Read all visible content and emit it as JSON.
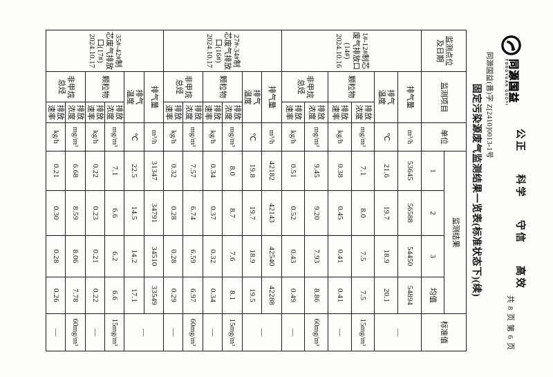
{
  "header": {
    "logo": {
      "brand": "同源国益",
      "brand_latin": "TONGYUAN GUOYI"
    },
    "cert_no": "同源国益(晋)字 Z[2410]0013-1号",
    "motto": [
      "公正",
      "科学",
      "守信",
      "高效"
    ],
    "pagination": "共 8 页  第 6 页"
  },
  "title": "固定污染源废气监测结果一览表(标准状态下)(续)",
  "table": {
    "col_headers": {
      "point": "监测点位\n及日期",
      "item": "监测项目",
      "unit": "单位",
      "results": "监测结果",
      "s1": "1",
      "s2": "2",
      "s3": "3",
      "avg": "均值",
      "standard": "标准值"
    },
    "points": [
      {
        "name": "1#-12#制芯\n废气排放口\n(14#)",
        "date": "2024.10.16",
        "rows": [
          {
            "item": "排气量",
            "unit": "m³/h",
            "values": [
              "53645",
              "56588",
              "54450",
              "54894"
            ],
            "standard": "—"
          },
          {
            "item": "排气\n温度",
            "unit": "℃",
            "values": [
              "21.6",
              "19.7",
              "18.9",
              "20.1"
            ]
          },
          {
            "item": "颗粒物",
            "sub": "排放\n浓度",
            "unit": "mg/m³",
            "values": [
              "7.1",
              "8.0",
              "7.5",
              "7.5"
            ],
            "standard": "15mg/m³"
          },
          {
            "sub": "排放\n速率",
            "unit": "kg/h",
            "values": [
              "0.38",
              "0.45",
              "0.41",
              "0.41"
            ],
            "standard": "—"
          },
          {
            "item": "非甲烷\n总烃",
            "sub": "排放\n浓度",
            "unit": "mg/m³",
            "values": [
              "9.45",
              "9.20",
              "7.93",
              "8.86"
            ],
            "standard": "60mg/m³"
          },
          {
            "sub": "排放\n速率",
            "unit": "kg/h",
            "values": [
              "0.51",
              "0.52",
              "0.43",
              "0.49"
            ],
            "standard": "—"
          }
        ]
      },
      {
        "name": "27#-34#制\n芯废气排放\n口(16#)",
        "date": "2024.10.17",
        "rows": [
          {
            "item": "排气量",
            "unit": "m³/h",
            "values": [
              "42182",
              "42143",
              "42540",
              "42288"
            ],
            "standard": "—"
          },
          {
            "item": "排气\n温度",
            "unit": "℃",
            "values": [
              "19.8",
              "19.7",
              "18.9",
              "19.5"
            ]
          },
          {
            "item": "颗粒物",
            "sub": "排放\n浓度",
            "unit": "mg/m³",
            "values": [
              "8.0",
              "8.7",
              "7.6",
              "8.1"
            ],
            "standard": "15mg/m³"
          },
          {
            "sub": "排放\n速率",
            "unit": "kg/h",
            "values": [
              "0.34",
              "0.37",
              "0.32",
              "0.34"
            ],
            "standard": "—"
          },
          {
            "item": "非甲烷\n总烃",
            "sub": "排放\n浓度",
            "unit": "mg/m³",
            "values": [
              "7.57",
              "6.74",
              "6.59",
              "6.97"
            ],
            "standard": "60mg/m³"
          },
          {
            "sub": "排放\n速率",
            "unit": "kg/h",
            "values": [
              "0.32",
              "0.28",
              "0.28",
              "0.29"
            ],
            "standard": "—"
          }
        ]
      },
      {
        "name": "35#-42#制\n芯废气排放\n口(17#)",
        "date": "2024.10.17",
        "rows": [
          {
            "item": "排气量",
            "unit": "m³/h",
            "values": [
              "31347",
              "34791",
              "34510",
              "33549"
            ],
            "standard": "—"
          },
          {
            "item": "排气\n温度",
            "unit": "℃",
            "values": [
              "22.5",
              "14.5",
              "14.2",
              "17.1"
            ]
          },
          {
            "item": "颗粒物",
            "sub": "排放\n浓度",
            "unit": "mg/m³",
            "values": [
              "7.1",
              "6.6",
              "6.2",
              "6.6"
            ],
            "standard": "15mg/m³"
          },
          {
            "sub": "排放\n速率",
            "unit": "kg/h",
            "values": [
              "0.22",
              "0.23",
              "0.21",
              "0.22"
            ],
            "standard": "—"
          },
          {
            "item": "非甲烷\n总烃",
            "sub": "排放\n浓度",
            "unit": "mg/m³",
            "values": [
              "6.68",
              "8.59",
              "8.06",
              "7.78"
            ],
            "standard": "60mg/m³"
          },
          {
            "sub": "排放\n速率",
            "unit": "kg/h",
            "values": [
              "0.21",
              "0.30",
              "0.28",
              "0.26"
            ],
            "standard": "—"
          }
        ]
      }
    ]
  }
}
